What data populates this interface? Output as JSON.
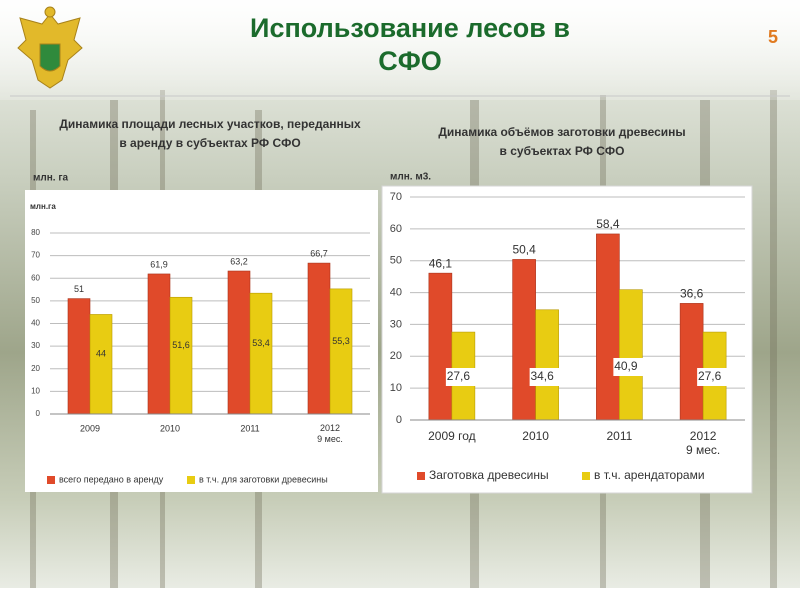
{
  "title": "Использование лесов в СФО",
  "page_number": "5",
  "chart_data": [
    {
      "type": "bar",
      "title": "Динамика площади лесных участков, переданных в аренду в субъектах РФ СФО",
      "unit_label": "млн. га",
      "inner_unit_label": "млн.га",
      "categories": [
        "2009",
        "2010",
        "2011",
        "2012\n9 мес."
      ],
      "series": [
        {
          "name": "всего передано в аренду",
          "color": "#e04a2a",
          "values": [
            51,
            61.9,
            63.2,
            66.7
          ],
          "value_labels": [
            "51",
            "61,9",
            "63,2",
            "66,7"
          ]
        },
        {
          "name": "в т.ч. для заготовки древесины",
          "color": "#e8cc12",
          "values": [
            44,
            51.6,
            53.4,
            55.3
          ],
          "value_labels": [
            "44",
            "51,6",
            "53,4",
            "55,3"
          ]
        }
      ],
      "ylim": [
        0,
        80
      ],
      "yticks": [
        0,
        10,
        20,
        30,
        40,
        50,
        60,
        70,
        80
      ],
      "grid": true
    },
    {
      "type": "bar",
      "title": "Динамика объёмов заготовки древесины в субъектах РФ СФО",
      "unit_label": "млн. м3.",
      "categories": [
        "2009 год",
        "2010",
        "2011",
        "2012\n9 мес."
      ],
      "series": [
        {
          "name": "Заготовка древесины",
          "color": "#e04a2a",
          "values": [
            46.1,
            50.4,
            58.4,
            36.6
          ],
          "value_labels": [
            "46,1",
            "50,4",
            "58,4",
            "36,6"
          ]
        },
        {
          "name": "в т.ч. арендаторами",
          "color": "#e8cc12",
          "values": [
            27.6,
            34.6,
            40.9,
            27.6
          ],
          "value_labels": [
            "27,6",
            "34,6",
            "40,9",
            "27,6"
          ]
        }
      ],
      "ylim": [
        0,
        70
      ],
      "yticks": [
        0,
        10,
        20,
        30,
        40,
        50,
        60,
        70
      ],
      "grid": true
    }
  ]
}
